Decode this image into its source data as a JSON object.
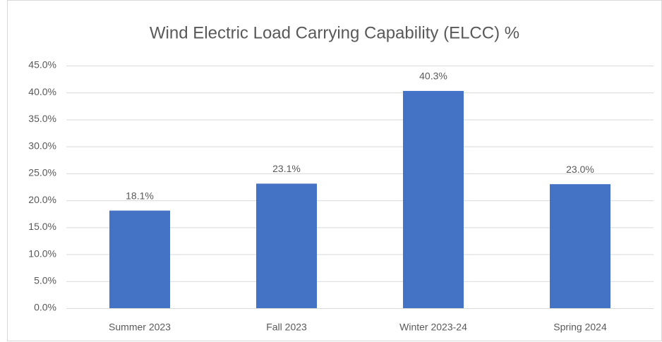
{
  "chart_data": {
    "type": "bar",
    "title": "Wind Electric Load Carrying Capability (ELCC) %",
    "categories": [
      "Summer 2023",
      "Fall 2023",
      "Winter 2023-24",
      "Spring 2024"
    ],
    "values": [
      18.1,
      23.1,
      40.3,
      23.0
    ],
    "value_labels": [
      "18.1%",
      "23.1%",
      "40.3%",
      "23.0%"
    ],
    "color": "#4472c4",
    "ylim": [
      0,
      45
    ],
    "yticks": [
      {
        "value": 0,
        "label": "0.0%"
      },
      {
        "value": 5,
        "label": "5.0%"
      },
      {
        "value": 10,
        "label": "10.0%"
      },
      {
        "value": 15,
        "label": "15.0%"
      },
      {
        "value": 20,
        "label": "20.0%"
      },
      {
        "value": 25,
        "label": "25.0%"
      },
      {
        "value": 30,
        "label": "30.0%"
      },
      {
        "value": 35,
        "label": "35.0%"
      },
      {
        "value": 40,
        "label": "40.0%"
      },
      {
        "value": 45,
        "label": "45.0%"
      }
    ],
    "grid": true
  }
}
